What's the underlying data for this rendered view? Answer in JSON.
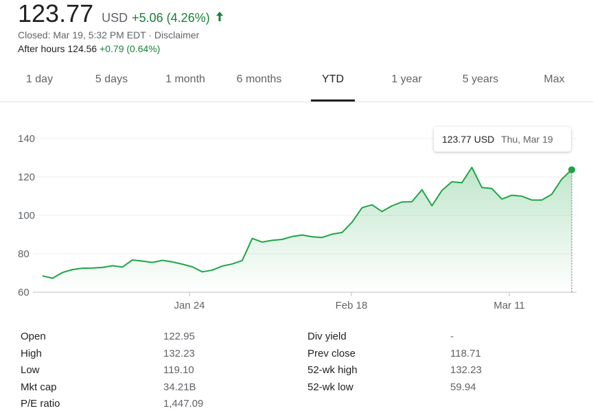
{
  "quote": {
    "price": "123.77",
    "currency": "USD",
    "change": "+5.06 (4.26%)",
    "closed_text": "Closed: Mar 19, 5:32 PM EDT · Disclaimer",
    "after_hours_label": "After hours 124.56",
    "after_hours_change": "+0.79 (0.64%)"
  },
  "tabs": [
    {
      "label": "1 day"
    },
    {
      "label": "5 days"
    },
    {
      "label": "1 month"
    },
    {
      "label": "6 months"
    },
    {
      "label": "YTD",
      "active": true
    },
    {
      "label": "1 year"
    },
    {
      "label": "5 years"
    },
    {
      "label": "Max"
    }
  ],
  "tooltip": {
    "price": "123.77 USD",
    "date": "Thu, Mar 19"
  },
  "colors": {
    "accent_green": "#188038",
    "line_green": "#1ea446"
  },
  "chart_data": {
    "type": "area",
    "ylim": [
      60,
      145
    ],
    "yticks": [
      140,
      120,
      100,
      80,
      60
    ],
    "xticks": [
      "Jan 24",
      "Feb 18",
      "Mar 11"
    ],
    "values": [
      68.5,
      67.3,
      70.3,
      71.8,
      72.5,
      72.6,
      72.9,
      73.8,
      73.1,
      76.8,
      76.2,
      75.5,
      76.6,
      75.8,
      74.6,
      73.2,
      70.6,
      71.5,
      73.6,
      74.7,
      76.5,
      88.0,
      86.1,
      87.0,
      87.5,
      89.0,
      89.8,
      88.9,
      88.5,
      90.2,
      91.1,
      96.5,
      104.0,
      105.5,
      102.0,
      105.0,
      107.0,
      107.1,
      113.4,
      105.0,
      113.0,
      117.5,
      117.0,
      125.0,
      114.5,
      114.0,
      108.5,
      110.5,
      110.0,
      108.0,
      108.0,
      111.0,
      118.9,
      123.77
    ]
  },
  "stats": [
    {
      "label1": "Open",
      "value1": "122.95",
      "label2": "Div yield",
      "value2": "-"
    },
    {
      "label1": "High",
      "value1": "132.23",
      "label2": "Prev close",
      "value2": "118.71"
    },
    {
      "label1": "Low",
      "value1": "119.10",
      "label2": "52-wk high",
      "value2": "132.23"
    },
    {
      "label1": "Mkt cap",
      "value1": "34.21B",
      "label2": "52-wk low",
      "value2": "59.94"
    },
    {
      "label1": "P/E ratio",
      "value1": "1,447.09",
      "label2": "",
      "value2": ""
    }
  ]
}
